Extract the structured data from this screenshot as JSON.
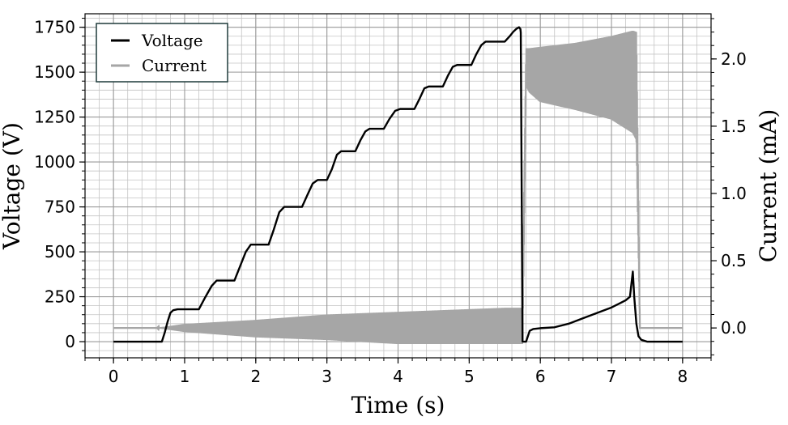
{
  "chart_data": {
    "type": "line",
    "xlabel": "Time (s)",
    "ylabel_left": "Voltage (V)",
    "ylabel_right": "Current (mA)",
    "xlim": [
      -0.4,
      8.4
    ],
    "ylim_left": [
      -90,
      1825
    ],
    "ylim_right": [
      -0.222,
      2.336
    ],
    "xticks": [
      0,
      1,
      2,
      3,
      4,
      5,
      6,
      7,
      8
    ],
    "yticks_left": [
      0,
      250,
      500,
      750,
      1000,
      1250,
      1500,
      1750
    ],
    "yticks_right": [
      0.0,
      0.5,
      1.0,
      1.5,
      2.0
    ],
    "ytick_labels_right": [
      "0.0",
      "0.5",
      "1.0",
      "1.5",
      "2.0"
    ],
    "grid": true,
    "legend_position": "upper-left",
    "series": [
      {
        "name": "Voltage",
        "axis": "left",
        "color": "#000000",
        "x": [
          0,
          0.68,
          0.72,
          0.76,
          0.8,
          0.84,
          0.9,
          1.2,
          1.28,
          1.38,
          1.45,
          1.7,
          1.78,
          1.86,
          1.93,
          2.18,
          2.25,
          2.33,
          2.4,
          2.65,
          2.73,
          2.8,
          2.87,
          3.0,
          3.07,
          3.14,
          3.2,
          3.4,
          3.47,
          3.54,
          3.6,
          3.8,
          3.88,
          3.96,
          4.03,
          4.23,
          4.3,
          4.37,
          4.43,
          4.63,
          4.7,
          4.77,
          4.83,
          5.03,
          5.1,
          5.17,
          5.23,
          5.5,
          5.57,
          5.62,
          5.66,
          5.7,
          5.72,
          5.725,
          5.75,
          5.8,
          5.85,
          5.9,
          6.0,
          6.2,
          6.4,
          6.6,
          6.8,
          7.0,
          7.1,
          7.2,
          7.26,
          7.3,
          7.32,
          7.35,
          7.38,
          7.42,
          7.5,
          8.0
        ],
        "y": [
          0,
          0,
          50,
          110,
          160,
          175,
          180,
          180,
          240,
          310,
          340,
          340,
          420,
          500,
          540,
          540,
          620,
          720,
          750,
          750,
          820,
          880,
          900,
          900,
          960,
          1040,
          1060,
          1060,
          1120,
          1170,
          1185,
          1185,
          1240,
          1285,
          1295,
          1295,
          1350,
          1410,
          1420,
          1420,
          1480,
          1530,
          1540,
          1540,
          1600,
          1650,
          1670,
          1670,
          1700,
          1725,
          1740,
          1750,
          1740,
          1720,
          0,
          0,
          60,
          70,
          75,
          80,
          100,
          130,
          160,
          190,
          210,
          230,
          250,
          390,
          250,
          100,
          30,
          10,
          0,
          0
        ]
      },
      {
        "name": "Current",
        "axis": "right",
        "color": "#a6a6a6",
        "x": [
          0,
          0.6,
          1.0,
          2.0,
          3.0,
          4.0,
          5.0,
          5.5,
          5.75,
          5.8,
          5.85,
          6.0,
          6.5,
          7.0,
          7.3,
          7.35,
          7.4,
          8.0
        ],
        "upper": [
          0.0,
          0.0,
          0.03,
          0.06,
          0.1,
          0.12,
          0.14,
          0.15,
          0.15,
          2.08,
          2.08,
          2.09,
          2.12,
          2.17,
          2.21,
          2.2,
          0.0,
          0.0
        ],
        "lower": [
          0.0,
          0.0,
          -0.03,
          -0.07,
          -0.09,
          -0.12,
          -0.12,
          -0.12,
          -0.12,
          1.8,
          1.75,
          1.68,
          1.62,
          1.55,
          1.45,
          1.4,
          0.0,
          0.0
        ]
      }
    ]
  }
}
